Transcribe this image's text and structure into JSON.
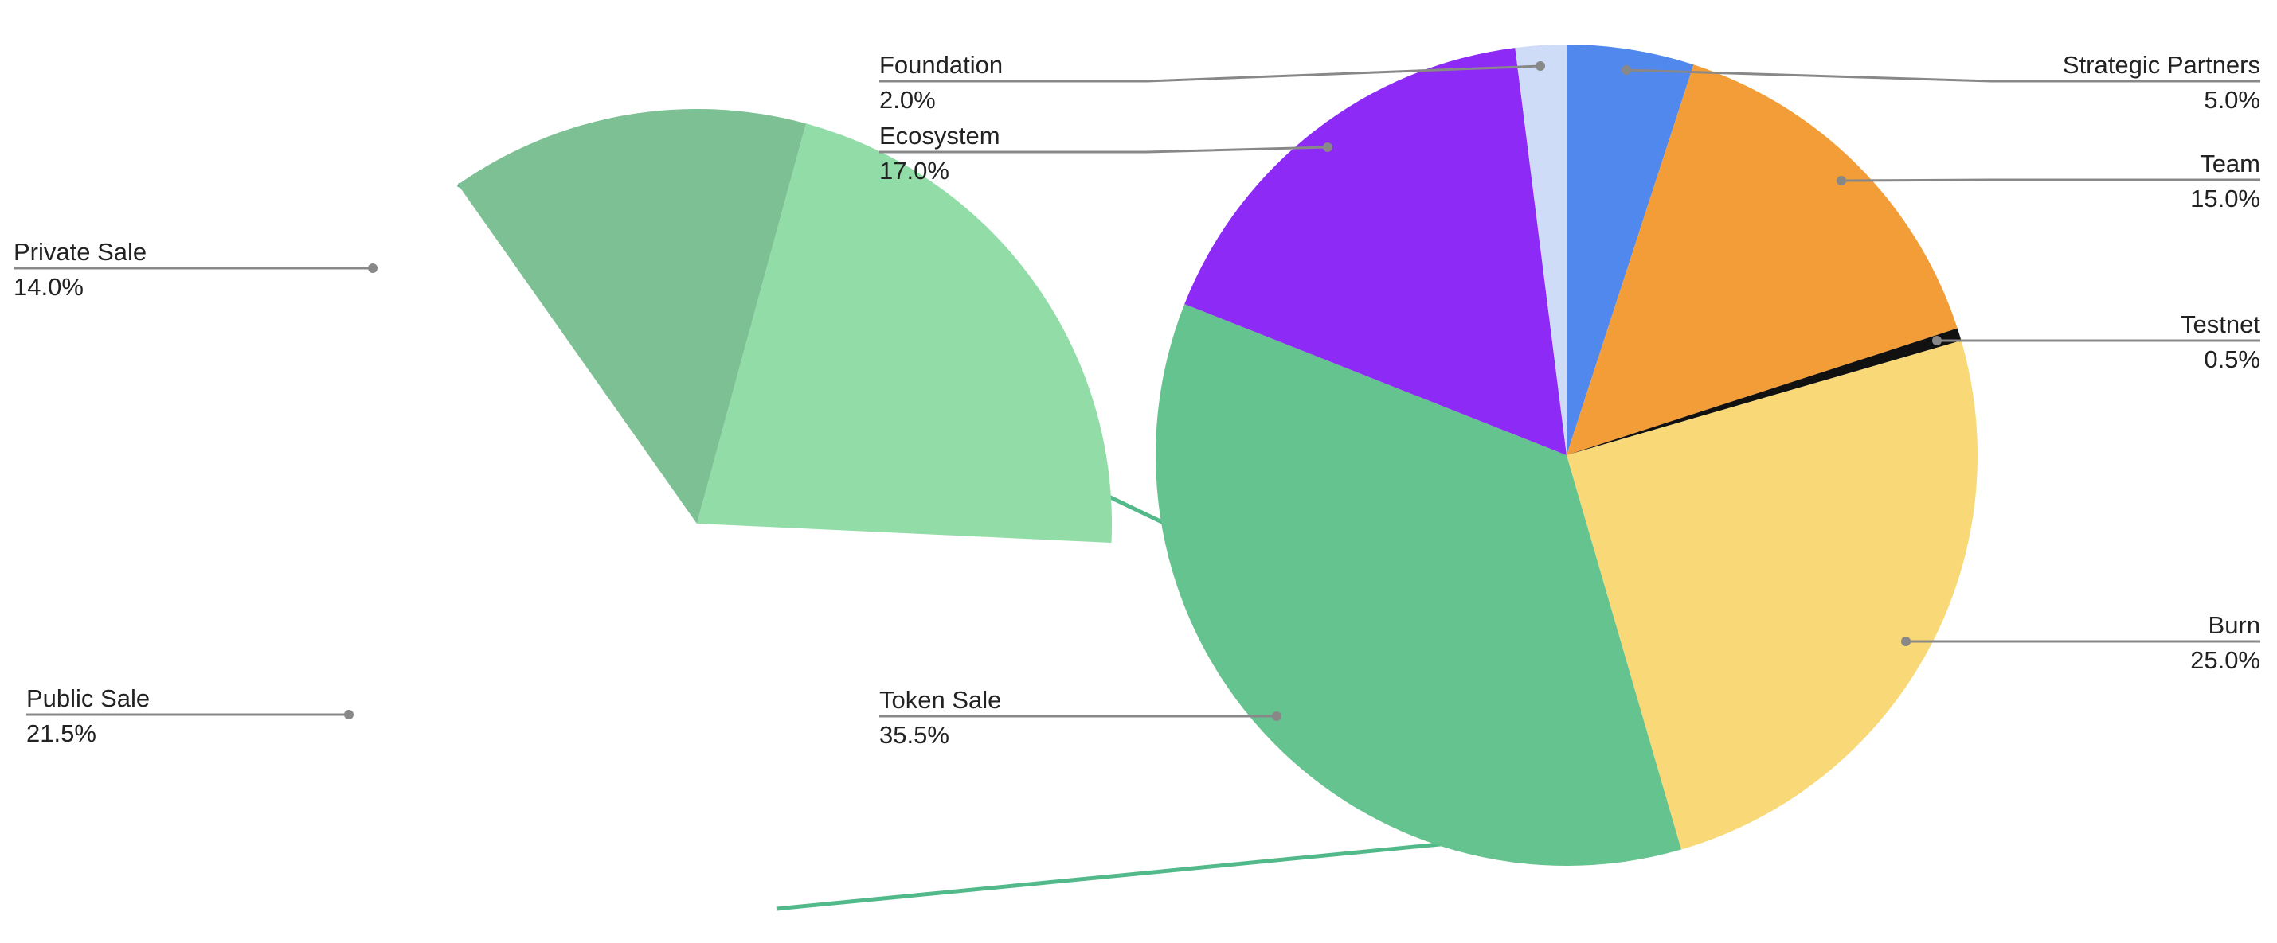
{
  "chart_data": {
    "type": "pie",
    "main_pie": {
      "slices": [
        {
          "name": "Strategic Partners",
          "value": 5.0,
          "label": "5.0%",
          "color": "#5088ee"
        },
        {
          "name": "Team",
          "value": 15.0,
          "label": "15.0%",
          "color": "#f39d38"
        },
        {
          "name": "Testnet",
          "value": 0.5,
          "label": "0.5%",
          "color": "#111111"
        },
        {
          "name": "Burn",
          "value": 25.0,
          "label": "25.0%",
          "color": "#f8d877"
        },
        {
          "name": "Token Sale",
          "value": 35.5,
          "label": "35.5%",
          "color": "#65c38f"
        },
        {
          "name": "Ecosystem",
          "value": 17.0,
          "label": "17.0%",
          "color": "#8e2af6"
        },
        {
          "name": "Foundation",
          "value": 2.0,
          "label": "2.0%",
          "color": "#cfdcf7"
        }
      ]
    },
    "breakout_pie": {
      "parent": "Token Sale",
      "slices": [
        {
          "name": "Private Sale",
          "value": 14.0,
          "label": "14.0%",
          "color": "#7cc094"
        },
        {
          "name": "Public Sale",
          "value": 21.5,
          "label": "21.5%",
          "color": "#92dca7"
        }
      ]
    },
    "connector_color": "#52b98a",
    "leader_color": "#888888",
    "title": "",
    "legend": "none"
  }
}
